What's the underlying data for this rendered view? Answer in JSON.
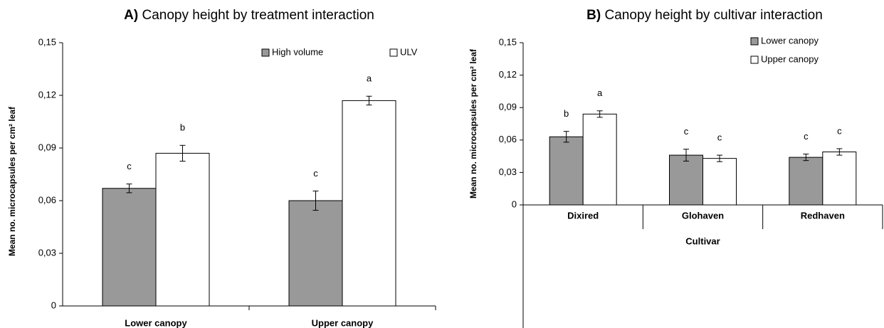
{
  "chart_data": [
    {
      "type": "bar",
      "title_prefix": "A)",
      "title": "Canopy height by treatment interaction",
      "y_label": "Mean no. microcapsules per cm² leaf",
      "categories": [
        "Lower canopy",
        "Upper canopy"
      ],
      "series": [
        {
          "name": "High volume",
          "color": "#999999",
          "values": [
            0.067,
            0.06
          ],
          "errors": [
            0.0025,
            0.0055
          ],
          "letters": [
            "c",
            "c"
          ]
        },
        {
          "name": "ULV",
          "color": "#ffffff",
          "values": [
            0.087,
            0.117
          ],
          "errors": [
            0.0045,
            0.0025
          ],
          "letters": [
            "b",
            "a"
          ]
        }
      ],
      "ylim": [
        0,
        0.15
      ],
      "yticks": [
        0,
        {
          "value": 0.03,
          "label": "0,03"
        },
        {
          "value": 0.06,
          "label": "0,06"
        },
        {
          "value": 0.09,
          "label": "0,09"
        },
        {
          "value": 0.12,
          "label": "0,12"
        },
        {
          "value": 0.15,
          "label": "0,15"
        }
      ]
    },
    {
      "type": "bar",
      "title_prefix": "B)",
      "title": "Canopy height by cultivar interaction",
      "y_label": "Mean no. microcapsules per cm² leaf",
      "x_label": "Cultivar",
      "categories": [
        "Dixired",
        "Glohaven",
        "Redhaven"
      ],
      "series": [
        {
          "name": "Lower canopy",
          "color": "#999999",
          "values": [
            0.063,
            0.046,
            0.044
          ],
          "errors": [
            0.005,
            0.0055,
            0.003
          ],
          "letters": [
            "b",
            "c",
            "c"
          ]
        },
        {
          "name": "Upper canopy",
          "color": "#ffffff",
          "values": [
            0.084,
            0.043,
            0.049
          ],
          "errors": [
            0.003,
            0.003,
            0.003
          ],
          "letters": [
            "a",
            "c",
            "c"
          ]
        }
      ],
      "ylim": [
        0,
        0.15
      ],
      "yticks": [
        0,
        {
          "value": 0.03,
          "label": "0,03"
        },
        {
          "value": 0.06,
          "label": "0,06"
        },
        {
          "value": 0.09,
          "label": "0,09"
        },
        {
          "value": 0.12,
          "label": "0,12"
        },
        {
          "value": 0.15,
          "label": "0,15"
        }
      ]
    }
  ]
}
